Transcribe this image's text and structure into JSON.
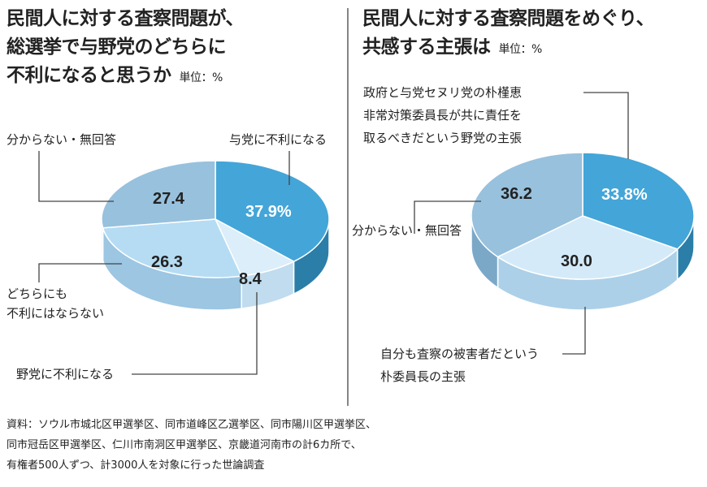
{
  "chart_data": [
    {
      "type": "pie",
      "style": "3d",
      "title_lines": [
        "民間人に対する査察問題が、",
        "総選挙で与野党のどちらに",
        "不利になると思うか"
      ],
      "unit": "単位：%",
      "slices": [
        {
          "label": "与党に不利になる",
          "value": 37.9,
          "display": "37.9%",
          "color": "#44a5d8",
          "side": "#2a7ea8"
        },
        {
          "label": "野党に不利になる",
          "value": 8.4,
          "display": "8.4",
          "color": "#dbeef9",
          "side": "#c0dcee"
        },
        {
          "label": "どちらにも 不利にはならない",
          "value": 26.3,
          "display": "26.3",
          "color": "#b5dcf3",
          "side": "#9cc6e2"
        },
        {
          "label": "分からない・無回答",
          "value": 27.4,
          "display": "27.4",
          "color": "#98c1dd",
          "side": "#7ca8c8"
        }
      ]
    },
    {
      "type": "pie",
      "style": "3d",
      "title_lines": [
        "民間人に対する査察問題をめぐり、",
        "共感する主張は"
      ],
      "unit": "単位：%",
      "slices": [
        {
          "label": "政府と与党セヌリ党の朴槿恵 非常対策委員長が共に責任を 取るべきだという野党の主張",
          "value": 33.8,
          "display": "33.8%",
          "color": "#44a5d8",
          "side": "#2a7ea8"
        },
        {
          "label": "自分も査察の被害者だという 朴委員長の主張",
          "value": 30.0,
          "display": "30.0",
          "color": "#d4eaf8",
          "side": "#acd0e8"
        },
        {
          "label": "分からない・無回答",
          "value": 36.2,
          "display": "36.2",
          "color": "#98c1dd",
          "side": "#7ca8c8"
        }
      ]
    }
  ],
  "labels": {
    "l_dk": "分からない・無回答",
    "l_ruling": "与党に不利になる",
    "l_neither_1": "どちらにも",
    "l_neither_2": "不利にはならない",
    "l_opp": "野党に不利になる",
    "r_opp_1": "政府と与党セヌリ党の朴槿恵",
    "r_opp_2": "非常対策委員長が共に責任を",
    "r_opp_3": "取るべきだという野党の主張",
    "r_dk": "分からない・無回答",
    "r_park_1": "自分も査察の被害者だという",
    "r_park_2": "朴委員長の主張"
  },
  "source": [
    "資料：ソウル市城北区甲選挙区、同市道峰区乙選挙区、同市陽川区甲選挙区、",
    "同市冠岳区甲選挙区、仁川市南洞区甲選挙区、京畿道河南市の計6カ所で、",
    "有権者500人ずつ、計3000人を対象に行った世論調査"
  ]
}
